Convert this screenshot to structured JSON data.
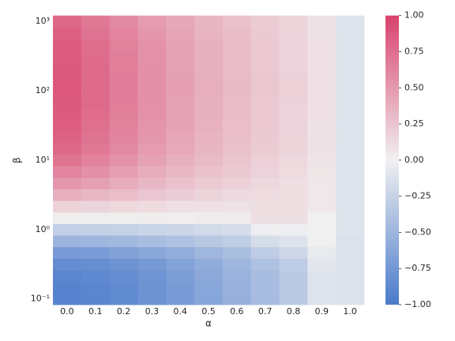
{
  "chart_data": {
    "type": "heatmap",
    "x_label": "α",
    "y_label": "β",
    "categories": [
      "0.0",
      "0.1",
      "0.2",
      "0.3",
      "0.4",
      "0.5",
      "0.6",
      "0.7",
      "0.8",
      "0.9",
      "1.0"
    ],
    "y": [
      0.1,
      0.147,
      0.215,
      0.316,
      0.464,
      0.681,
      1,
      1.468,
      2.154,
      3.162,
      4.642,
      6.813,
      10,
      14.68,
      21.54,
      31.62,
      46.42,
      68.13,
      100,
      146.8,
      215.4,
      316.2,
      464.2,
      681.3,
      1000
    ],
    "log_y": true,
    "ylim": [
      0.0825,
      1212
    ],
    "yticks": [
      {
        "value": 0.1,
        "label": "10⁻¹"
      },
      {
        "value": 1,
        "label": "10⁰"
      },
      {
        "value": 10,
        "label": "10¹"
      },
      {
        "value": 100,
        "label": "10²"
      },
      {
        "value": 1000,
        "label": "10³"
      }
    ],
    "z": [
      [
        -0.92,
        -0.9,
        -0.86,
        -0.79,
        -0.72,
        -0.63,
        -0.53,
        -0.44,
        -0.32,
        -0.11,
        -0.12
      ],
      [
        -0.92,
        -0.9,
        -0.86,
        -0.79,
        -0.72,
        -0.63,
        -0.53,
        -0.44,
        -0.32,
        -0.11,
        -0.12
      ],
      [
        -0.9,
        -0.88,
        -0.84,
        -0.77,
        -0.7,
        -0.61,
        -0.52,
        -0.43,
        -0.32,
        -0.1,
        -0.12
      ],
      [
        -0.85,
        -0.83,
        -0.79,
        -0.73,
        -0.66,
        -0.58,
        -0.49,
        -0.4,
        -0.3,
        -0.08,
        -0.12
      ],
      [
        -0.72,
        -0.71,
        -0.67,
        -0.62,
        -0.56,
        -0.49,
        -0.42,
        -0.3,
        -0.2,
        -0.05,
        -0.12
      ],
      [
        -0.5,
        -0.49,
        -0.47,
        -0.43,
        -0.39,
        -0.34,
        -0.29,
        -0.16,
        -0.1,
        0,
        -0.12
      ],
      [
        -0.28,
        -0.27,
        -0.26,
        -0.24,
        -0.22,
        -0.19,
        -0.16,
        -0.02,
        -0.02,
        0,
        -0.1
      ],
      [
        0.02,
        0.02,
        0.02,
        0.02,
        0.02,
        0.03,
        0.03,
        0.1,
        0.1,
        0,
        -0.1
      ],
      [
        0.18,
        0.16,
        0.14,
        0.12,
        0.1,
        0.09,
        0.08,
        0.1,
        0.1,
        0.05,
        -0.1
      ],
      [
        0.38,
        0.33,
        0.29,
        0.24,
        0.2,
        0.16,
        0.13,
        0.12,
        0.1,
        0.05,
        -0.1
      ],
      [
        0.52,
        0.46,
        0.39,
        0.33,
        0.27,
        0.22,
        0.18,
        0.14,
        0.1,
        0.05,
        -0.1
      ],
      [
        0.62,
        0.55,
        0.47,
        0.39,
        0.32,
        0.27,
        0.22,
        0.17,
        0.12,
        0.06,
        -0.1
      ],
      [
        0.72,
        0.63,
        0.54,
        0.45,
        0.37,
        0.31,
        0.25,
        0.19,
        0.14,
        0.07,
        -0.1
      ],
      [
        0.78,
        0.69,
        0.59,
        0.49,
        0.41,
        0.34,
        0.27,
        0.21,
        0.16,
        0.08,
        -0.1
      ],
      [
        0.82,
        0.72,
        0.62,
        0.52,
        0.43,
        0.35,
        0.29,
        0.22,
        0.16,
        0.08,
        -0.1
      ],
      [
        0.84,
        0.74,
        0.63,
        0.53,
        0.44,
        0.36,
        0.29,
        0.23,
        0.17,
        0.08,
        -0.1
      ],
      [
        0.86,
        0.76,
        0.65,
        0.54,
        0.45,
        0.37,
        0.3,
        0.23,
        0.17,
        0.09,
        -0.1
      ],
      [
        0.87,
        0.77,
        0.65,
        0.55,
        0.45,
        0.37,
        0.3,
        0.23,
        0.17,
        0.09,
        -0.1
      ],
      [
        0.88,
        0.77,
        0.66,
        0.55,
        0.46,
        0.38,
        0.31,
        0.24,
        0.18,
        0.09,
        -0.1
      ],
      [
        0.88,
        0.77,
        0.66,
        0.55,
        0.46,
        0.38,
        0.31,
        0.24,
        0.18,
        0.09,
        -0.1
      ],
      [
        0.87,
        0.77,
        0.65,
        0.55,
        0.45,
        0.37,
        0.3,
        0.23,
        0.17,
        0.09,
        -0.1
      ],
      [
        0.86,
        0.76,
        0.65,
        0.54,
        0.45,
        0.37,
        0.3,
        0.23,
        0.17,
        0.09,
        -0.1
      ],
      [
        0.85,
        0.75,
        0.64,
        0.54,
        0.44,
        0.37,
        0.3,
        0.23,
        0.17,
        0.09,
        -0.1
      ],
      [
        0.82,
        0.72,
        0.62,
        0.52,
        0.43,
        0.35,
        0.29,
        0.22,
        0.16,
        0.08,
        -0.1
      ],
      [
        0.78,
        0.69,
        0.59,
        0.49,
        0.41,
        0.34,
        0.27,
        0.21,
        0.16,
        0.08,
        -0.1
      ]
    ],
    "colormap": [
      "#4a7acb",
      "#f0f0f0",
      "#d9426d"
    ],
    "clim": [
      -1,
      1
    ],
    "cticks": [
      {
        "value": 1,
        "label": "1.00"
      },
      {
        "value": 0.75,
        "label": "0.75"
      },
      {
        "value": 0.5,
        "label": "0.50"
      },
      {
        "value": 0.25,
        "label": "0.25"
      },
      {
        "value": 0,
        "label": "0.00"
      },
      {
        "value": -0.25,
        "label": "−0.25"
      },
      {
        "value": -0.5,
        "label": "−0.50"
      },
      {
        "value": -0.75,
        "label": "−0.75"
      },
      {
        "value": -1,
        "label": "−1.00"
      }
    ]
  }
}
